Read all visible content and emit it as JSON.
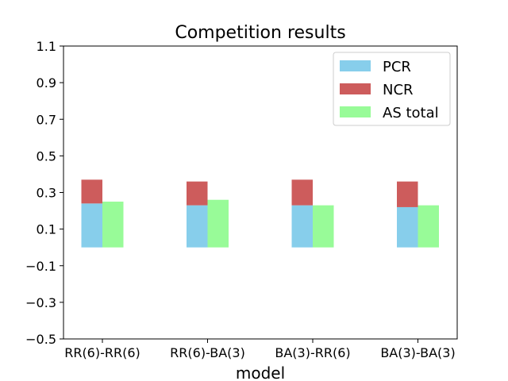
{
  "chart_data": {
    "type": "bar",
    "title": "Competition results",
    "xlabel": "model",
    "ylabel": "",
    "categories": [
      "RR(6)-RR(6)",
      "RR(6)-BA(3)",
      "BA(3)-RR(6)",
      "BA(3)-BA(3)"
    ],
    "ylim": [
      -0.5,
      1.1
    ],
    "yticks": [
      -0.5,
      -0.3,
      -0.1,
      0.1,
      0.3,
      0.5,
      0.7,
      0.9,
      1.1
    ],
    "ytick_labels": [
      "−0.5",
      "−0.3",
      "−0.1",
      "0.1",
      "0.3",
      "0.5",
      "0.7",
      "0.9",
      "1.1"
    ],
    "stacked_series": [
      {
        "name": "PCR",
        "color": "#87ceeb",
        "values": [
          0.24,
          0.23,
          0.23,
          0.22
        ]
      },
      {
        "name": "NCR",
        "color": "#cd5c5c",
        "values": [
          0.13,
          0.13,
          0.14,
          0.14
        ]
      }
    ],
    "side_series": [
      {
        "name": "AS total",
        "color": "#98fb98",
        "values": [
          0.25,
          0.26,
          0.23,
          0.23
        ]
      }
    ],
    "legend": {
      "placement": "upper-right",
      "entries": [
        {
          "label": "PCR",
          "color": "#87ceeb"
        },
        {
          "label": "NCR",
          "color": "#cd5c5c"
        },
        {
          "label": "AS total",
          "color": "#98fb98"
        }
      ]
    },
    "grid": false
  }
}
